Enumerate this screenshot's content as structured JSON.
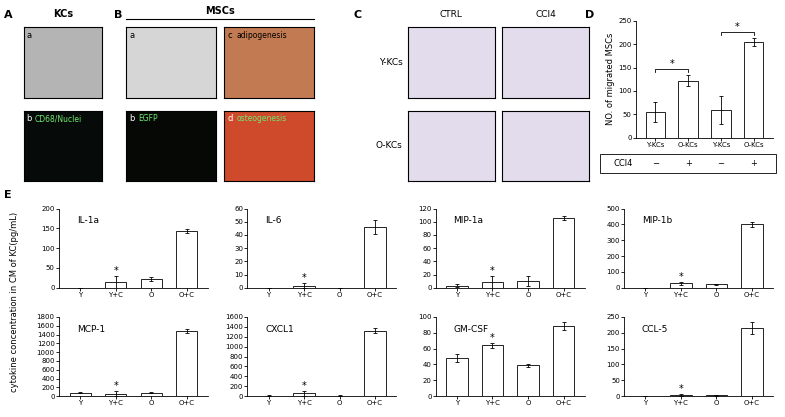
{
  "panel_labels": [
    "A",
    "B",
    "C",
    "D",
    "E"
  ],
  "panel_A": {
    "title": "KCs",
    "images": [
      {
        "label": "a",
        "color": "#b4b4b4"
      },
      {
        "label": "b",
        "text": "CD68/Nuclei",
        "color": "#060a08"
      }
    ]
  },
  "panel_B": {
    "title": "MSCs",
    "images": [
      {
        "label": "a",
        "color": "#d6d6d6"
      },
      {
        "label": "b",
        "text": "EGFP",
        "color": "#050805"
      },
      {
        "label": "c",
        "text": "adipogenesis",
        "color": "#c27a52"
      },
      {
        "label": "d",
        "text": "osteogenesis",
        "color": "#cf4a2a"
      }
    ]
  },
  "panel_C": {
    "columns": [
      "CTRL",
      "CCl4"
    ],
    "rows": [
      "Y-KCs",
      "O-KCs"
    ],
    "color": "#e2dcec"
  },
  "panel_E": {
    "y_label": "cytokine concentration in CM of KC(pg/mL)"
  },
  "chart_data": [
    {
      "type": "bar",
      "y_label": "NO. of migrated MSCs",
      "categories": [
        "Y-KCs",
        "O-KCs",
        "Y-KCs",
        "O-KCs"
      ],
      "values": [
        55,
        122,
        60,
        205
      ],
      "errors": [
        22,
        12,
        30,
        8
      ],
      "color": "#ffffff",
      "ylim": [
        0,
        250
      ],
      "yticks": [
        0,
        50,
        100,
        150,
        200,
        250
      ],
      "conditions": {
        "label": "CCl4",
        "values": [
          "−",
          "+",
          "−",
          "+"
        ]
      },
      "comparisons": [
        {
          "between": [
            0,
            1
          ],
          "text": "*"
        },
        {
          "between": [
            2,
            3
          ],
          "text": "*"
        }
      ]
    },
    {
      "type": "bar",
      "title": "IL-1a",
      "categories": [
        "Y",
        "Y+C",
        "O",
        "O+C"
      ],
      "values": [
        0,
        14,
        22,
        143
      ],
      "errors": [
        0,
        16,
        4,
        4
      ],
      "color": "#ffffff",
      "ylim": [
        0,
        200
      ],
      "yticks": [
        0,
        50,
        100,
        150,
        200
      ],
      "annotations": [
        {
          "category": "Y+C",
          "text": "*"
        }
      ]
    },
    {
      "type": "bar",
      "title": "IL-6",
      "categories": [
        "Y",
        "Y+C",
        "O",
        "O+C"
      ],
      "values": [
        0,
        1.5,
        0,
        46
      ],
      "errors": [
        0,
        2,
        0,
        5
      ],
      "color": "#ffffff",
      "ylim": [
        0,
        60
      ],
      "yticks": [
        0,
        10,
        20,
        30,
        40,
        50,
        60
      ],
      "annotations": [
        {
          "category": "Y+C",
          "text": "*"
        }
      ]
    },
    {
      "type": "bar",
      "title": "MIP-1a",
      "categories": [
        "Y",
        "Y+C",
        "O",
        "O+C"
      ],
      "values": [
        3,
        8,
        10,
        105
      ],
      "errors": [
        2,
        10,
        8,
        3
      ],
      "color": "#ffffff",
      "ylim": [
        0,
        120
      ],
      "yticks": [
        0,
        20,
        40,
        60,
        80,
        100,
        120
      ],
      "annotations": [
        {
          "category": "Y+C",
          "text": "*"
        }
      ]
    },
    {
      "type": "bar",
      "title": "MIP-1b",
      "categories": [
        "Y",
        "Y+C",
        "O",
        "O+C"
      ],
      "values": [
        0,
        28,
        22,
        400
      ],
      "errors": [
        0,
        8,
        2,
        15
      ],
      "color": "#ffffff",
      "ylim": [
        0,
        500
      ],
      "yticks": [
        0,
        100,
        200,
        300,
        400,
        500
      ],
      "annotations": [
        {
          "category": "Y+C",
          "text": "*"
        }
      ]
    },
    {
      "type": "bar",
      "title": "MCP-1",
      "categories": [
        "Y",
        "Y+C",
        "O",
        "O+C"
      ],
      "values": [
        80,
        60,
        80,
        1480
      ],
      "errors": [
        10,
        50,
        10,
        40
      ],
      "color": "#ffffff",
      "ylim": [
        0,
        1800
      ],
      "yticks": [
        0,
        200,
        400,
        600,
        800,
        1000,
        1200,
        1400,
        1600,
        1800
      ],
      "annotations": [
        {
          "category": "Y+C",
          "text": "*"
        }
      ]
    },
    {
      "type": "bar",
      "title": "CXCL1",
      "categories": [
        "Y",
        "Y+C",
        "O",
        "O+C"
      ],
      "values": [
        10,
        60,
        10,
        1320
      ],
      "errors": [
        5,
        50,
        5,
        50
      ],
      "color": "#ffffff",
      "ylim": [
        0,
        1600
      ],
      "yticks": [
        0,
        200,
        400,
        600,
        800,
        1000,
        1200,
        1400,
        1600
      ],
      "annotations": [
        {
          "category": "Y+C",
          "text": "*"
        }
      ]
    },
    {
      "type": "bar",
      "title": "GM-CSF",
      "categories": [
        "Y",
        "Y+C",
        "O",
        "O+C"
      ],
      "values": [
        48,
        64,
        39,
        88
      ],
      "errors": [
        5,
        3,
        2,
        5
      ],
      "color": "#ffffff",
      "ylim": [
        0,
        100
      ],
      "yticks": [
        0,
        20,
        40,
        60,
        80,
        100
      ],
      "annotations": [
        {
          "category": "Y+C",
          "text": "*"
        }
      ]
    },
    {
      "type": "bar",
      "title": "CCL-5",
      "categories": [
        "Y",
        "Y+C",
        "O",
        "O+C"
      ],
      "values": [
        0,
        5,
        3,
        215
      ],
      "errors": [
        0,
        3,
        1,
        20
      ],
      "color": "#ffffff",
      "ylim": [
        0,
        250
      ],
      "yticks": [
        0,
        50,
        100,
        150,
        200,
        250
      ],
      "annotations": [
        {
          "category": "Y+C",
          "text": "*"
        }
      ]
    }
  ]
}
